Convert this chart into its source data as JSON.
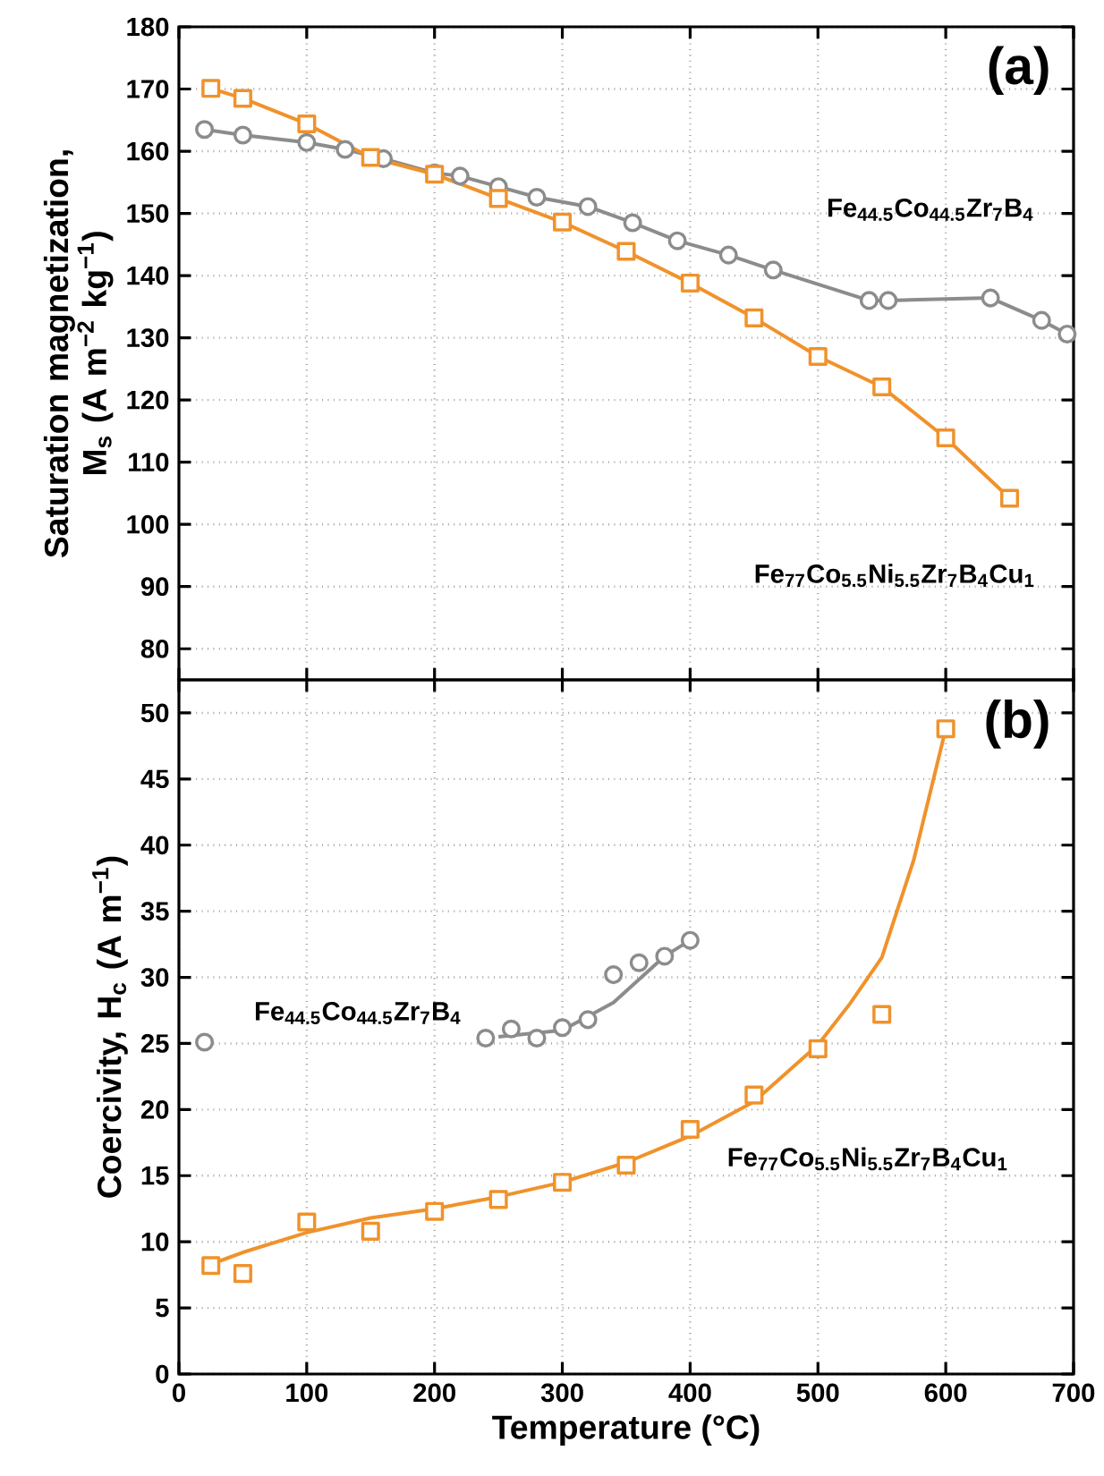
{
  "chart_data": [
    {
      "type": "line",
      "ylabel": "Saturation magnetization, M$_{s}$ (A m$^{−2}$ kg$^{−1}$)",
      "xlim": [
        0,
        700
      ],
      "xticks": [
        0,
        100,
        200,
        300,
        400,
        500,
        600,
        700
      ],
      "ylim": [
        75,
        180
      ],
      "yticks": [
        80,
        90,
        100,
        110,
        120,
        130,
        140,
        150,
        160,
        170,
        180
      ],
      "grid": true,
      "tick_labels": "y",
      "annotations": [
        "(a)"
      ],
      "series": [
        {
          "name": "Fe$_{44.5}$Co$_{44.5}$Zr$_{7}$B$_{4}$",
          "color": "#8c8c8c",
          "marker": "circle",
          "x": [
            20,
            50,
            100,
            130,
            160,
            200,
            220,
            250,
            280,
            320,
            355,
            390,
            430,
            465,
            540,
            555,
            635,
            675,
            695
          ],
          "values": [
            163.5,
            162.6,
            161.4,
            160.3,
            158.8,
            156.5,
            156.0,
            154.3,
            152.6,
            151.1,
            148.5,
            145.6,
            143.3,
            140.9,
            136.0,
            136.0,
            136.4,
            132.8,
            130.6
          ]
        },
        {
          "name": "Fe$_{77}$Co$_{5.5}$Ni$_{5.5}$Zr$_{7}$B$_{4}$Cu$_{1}$",
          "color": "#f0922b",
          "marker": "square",
          "x": [
            25,
            50,
            100,
            150,
            200,
            250,
            300,
            350,
            400,
            450,
            500,
            550,
            600,
            650
          ],
          "values": [
            170.1,
            168.5,
            164.4,
            159.0,
            156.3,
            152.4,
            148.6,
            143.9,
            138.8,
            133.2,
            127.0,
            122.1,
            113.9,
            104.2
          ]
        }
      ]
    },
    {
      "type": "scatter",
      "xlabel": "Temperature (°C)",
      "ylabel": "Coercivity, H$_{c}$ (A m$^{−1}$)",
      "xlim": [
        0,
        700
      ],
      "xticks": [
        0,
        100,
        200,
        300,
        400,
        500,
        600,
        700
      ],
      "ylim": [
        0,
        52.5
      ],
      "yticks": [
        0,
        5,
        10,
        15,
        20,
        25,
        30,
        35,
        40,
        45,
        50
      ],
      "grid": true,
      "annotations": [
        "(b)"
      ],
      "series": [
        {
          "type": "line",
          "color": "#8c8c8c",
          "marker": "none",
          "x": [
            250,
            300,
            340,
            380,
            400
          ],
          "values": [
            25.5,
            26.0,
            28.1,
            31.6,
            32.8
          ]
        },
        {
          "name": "Fe$_{44.5}$Co$_{44.5}$Zr$_{7}$B$_{4}$",
          "color": "#8c8c8c",
          "marker": "circle",
          "x": [
            20,
            240,
            260,
            280,
            300,
            320,
            340,
            360,
            380,
            400
          ],
          "values": [
            25.1,
            25.4,
            26.1,
            25.4,
            26.2,
            26.8,
            30.2,
            31.1,
            31.6,
            32.8
          ]
        },
        {
          "type": "line",
          "color": "#f0922b",
          "marker": "none",
          "x": [
            25,
            50,
            100,
            150,
            200,
            250,
            300,
            350,
            400,
            450,
            500,
            525,
            550,
            575,
            600
          ],
          "values": [
            8.3,
            9.2,
            10.7,
            11.8,
            12.5,
            13.4,
            14.5,
            16.0,
            18.0,
            20.6,
            24.9,
            28.0,
            31.5,
            38.9,
            48.8
          ]
        },
        {
          "name": "Fe$_{77}$Co$_{5.5}$Ni$_{5.5}$Zr$_{7}$B$_{4}$Cu$_{1}$",
          "color": "#f0922b",
          "marker": "square",
          "x": [
            25,
            50,
            100,
            150,
            200,
            250,
            300,
            350,
            400,
            450,
            500,
            550,
            600
          ],
          "values": [
            8.2,
            7.6,
            11.5,
            10.8,
            12.3,
            13.2,
            14.5,
            15.8,
            18.5,
            21.1,
            24.6,
            27.2,
            48.8
          ]
        }
      ]
    }
  ]
}
